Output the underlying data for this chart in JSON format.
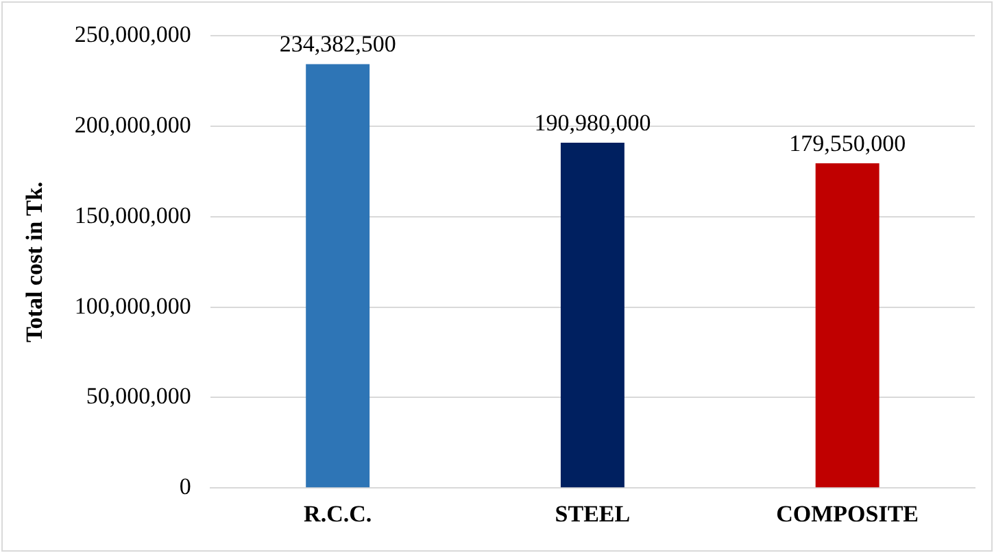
{
  "chart_data": {
    "type": "bar",
    "ylabel": "Total cost in Tk.",
    "categories": [
      "R.C.C.",
      "STEEL",
      "COMPOSITE"
    ],
    "values": [
      234382500,
      190980000,
      179550000
    ],
    "value_labels": [
      "234,382,500",
      "190,980,000",
      "179,550,000"
    ],
    "colors": [
      "#2e75b6",
      "#002060",
      "#c00000"
    ],
    "ylim": [
      0,
      250000000
    ],
    "yticks": [
      0,
      {
        "value": 50000000,
        "label": "50,000,000"
      },
      {
        "value": 100000000,
        "label": "100,000,000"
      },
      {
        "value": 150000000,
        "label": "150,000,000"
      },
      {
        "value": 200000000,
        "label": "200,000,000"
      },
      {
        "value": 250000000,
        "label": "250,000,000"
      }
    ],
    "grid": "y",
    "legend": false
  }
}
